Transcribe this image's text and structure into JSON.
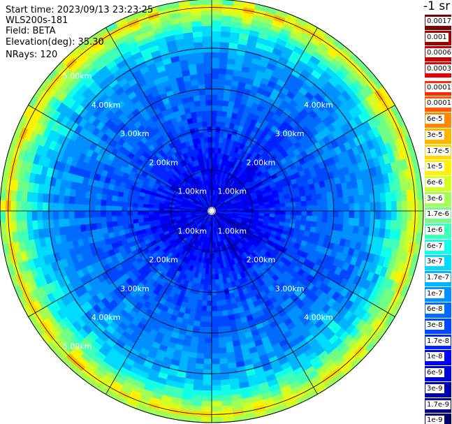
{
  "header": {
    "start_time": "Start time: 2023/09/13 23:23:25",
    "instrument": "WLS200s-181",
    "field": "Field: BETA",
    "elevation": "Elevation(deg): 35.30",
    "nrays": "NRays: 120"
  },
  "colorbar": {
    "unit": "-1 sr",
    "levels": [
      {
        "label": "0.0017",
        "color": "#7f0000",
        "text": "light"
      },
      {
        "label": "0.001",
        "color": "#a00000",
        "text": "light"
      },
      {
        "label": "0.0006",
        "color": "#c40000",
        "text": "light"
      },
      {
        "label": "0.0003",
        "color": "#e80000",
        "text": "light"
      },
      {
        "label": "0.00017",
        "color": "#ff2a00",
        "text": "light"
      },
      {
        "label": "0.0001",
        "color": "#ff5a00",
        "text": "light"
      },
      {
        "label": "6e-5",
        "color": "#ff8a00",
        "text": "light"
      },
      {
        "label": "3e-5",
        "color": "#ffb400",
        "text": "light"
      },
      {
        "label": "1.7e-5",
        "color": "#ffd800",
        "text": "light"
      },
      {
        "label": "1e-5",
        "color": "#fff200",
        "text": "light"
      },
      {
        "label": "6e-6",
        "color": "#d4ff22",
        "text": "light"
      },
      {
        "label": "3e-6",
        "color": "#a2ff54",
        "text": "light"
      },
      {
        "label": "1.7e-6",
        "color": "#70ff86",
        "text": "light"
      },
      {
        "label": "1e-6",
        "color": "#40ffb6",
        "text": "light"
      },
      {
        "label": "6e-7",
        "color": "#10ffe6",
        "text": "light"
      },
      {
        "label": "3e-7",
        "color": "#00dcff",
        "text": "light"
      },
      {
        "label": "1.7e-7",
        "color": "#00b4ff",
        "text": "light"
      },
      {
        "label": "1e-7",
        "color": "#0090ff",
        "text": "light"
      },
      {
        "label": "6e-8",
        "color": "#006cff",
        "text": "light"
      },
      {
        "label": "3e-8",
        "color": "#0048ff",
        "text": "light"
      },
      {
        "label": "1.7e-8",
        "color": "#0024ff",
        "text": "light"
      },
      {
        "label": "1e-8",
        "color": "#0000ff",
        "text": "light"
      },
      {
        "label": "6e-9",
        "color": "#0000d8",
        "text": "light"
      },
      {
        "label": "3e-9",
        "color": "#0000b0",
        "text": "light"
      },
      {
        "label": "1.7e-9",
        "color": "#00008c",
        "text": "light"
      },
      {
        "label": "1e-9",
        "color": "#000066",
        "text": "light"
      }
    ]
  },
  "chart_data": {
    "type": "heatmap",
    "projection": "polar (PPI scan)",
    "field": "BETA",
    "elevation_deg": 35.3,
    "n_rays": 120,
    "range_km": [
      0,
      5.2
    ],
    "range_rings_km": [
      1,
      2,
      3,
      4,
      5
    ],
    "ring_labels": [
      "1.00km",
      "2.00km",
      "3.00km",
      "4.00km",
      "5.00km"
    ],
    "spokes_deg": [
      0,
      30,
      60,
      90,
      120,
      150,
      180,
      210,
      240,
      270,
      300,
      330
    ],
    "radial_profile": [
      {
        "range_km": 0.0,
        "level": "1e-8"
      },
      {
        "range_km": 1.0,
        "level": "1e-8"
      },
      {
        "range_km": 2.0,
        "level": "3e-8"
      },
      {
        "range_km": 3.0,
        "level": "6e-8"
      },
      {
        "range_km": 3.8,
        "level": "1e-7"
      },
      {
        "range_km": 4.4,
        "level": "3e-7"
      },
      {
        "range_km": 4.8,
        "level": "3e-6"
      },
      {
        "range_km": 5.0,
        "level": "1e-5"
      },
      {
        "range_km": 5.05,
        "level": "6e-5"
      },
      {
        "range_km": 5.15,
        "level": "1.7e-6"
      },
      {
        "range_km": 5.2,
        "level": "1e-7"
      }
    ],
    "colorscale": "log, 1e-9 to 0.0017 sr^-1"
  }
}
